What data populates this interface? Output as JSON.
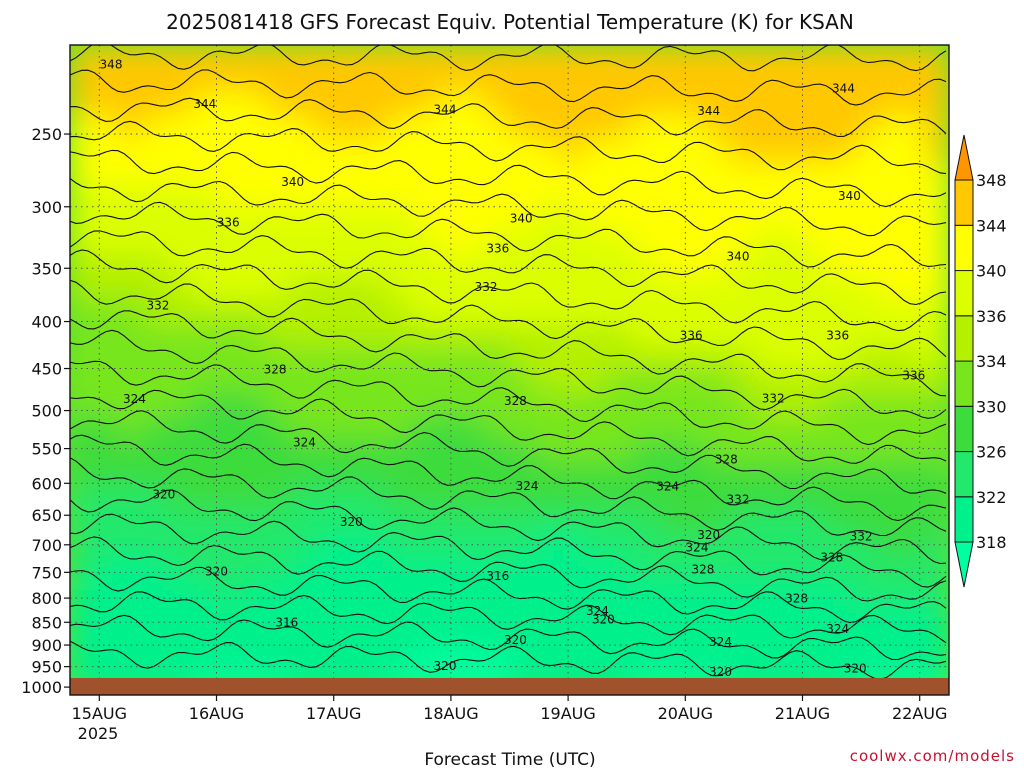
{
  "chart_data": {
    "type": "heatmap",
    "title": "2025081418 GFS Forecast Equiv. Potential Temperature (K) for KSAN",
    "xlabel": "Forecast Time (UTC)",
    "ylabel": "",
    "x_ticks": [
      "15AUG",
      "16AUG",
      "17AUG",
      "18AUG",
      "19AUG",
      "20AUG",
      "21AUG",
      "22AUG"
    ],
    "x_year_label": "2025",
    "x_range_days": [
      14.75,
      22.25
    ],
    "y_ticks": [
      250,
      300,
      350,
      400,
      450,
      500,
      550,
      600,
      650,
      700,
      750,
      800,
      850,
      900,
      950,
      1000
    ],
    "y_range_hpa": [
      200,
      1020
    ],
    "y_scale": "log",
    "grid": true,
    "colorbar": {
      "labels": [
        "318",
        "322",
        "326",
        "330",
        "334",
        "336",
        "340",
        "344",
        "348"
      ],
      "bands": [
        {
          "range": "<318",
          "color": "#00ffa0"
        },
        {
          "range": "318-322",
          "color": "#00f08c"
        },
        {
          "range": "322-326",
          "color": "#22e86c"
        },
        {
          "range": "326-330",
          "color": "#3cdc3c"
        },
        {
          "range": "330-334",
          "color": "#78e61e"
        },
        {
          "range": "334-336",
          "color": "#b4f000"
        },
        {
          "range": "336-340",
          "color": "#dcff00"
        },
        {
          "range": "340-344",
          "color": "#ffff00"
        },
        {
          "range": "344-348",
          "color": "#ffc800"
        },
        {
          "range": ">348",
          "color": "#ff9600"
        }
      ],
      "extend": "both"
    },
    "contour_labels": [
      {
        "text": "348",
        "day": 15.1,
        "p": 210
      },
      {
        "text": "344",
        "day": 15.9,
        "p": 232
      },
      {
        "text": "344",
        "day": 17.95,
        "p": 235
      },
      {
        "text": "344",
        "day": 20.2,
        "p": 236
      },
      {
        "text": "344",
        "day": 21.35,
        "p": 223
      },
      {
        "text": "340",
        "day": 16.65,
        "p": 282
      },
      {
        "text": "340",
        "day": 18.6,
        "p": 309
      },
      {
        "text": "340",
        "day": 20.45,
        "p": 340
      },
      {
        "text": "340",
        "day": 21.4,
        "p": 292
      },
      {
        "text": "336",
        "day": 16.1,
        "p": 312
      },
      {
        "text": "336",
        "day": 18.4,
        "p": 333
      },
      {
        "text": "336",
        "day": 20.05,
        "p": 414
      },
      {
        "text": "336",
        "day": 21.3,
        "p": 414
      },
      {
        "text": "336",
        "day": 21.95,
        "p": 458
      },
      {
        "text": "332",
        "day": 15.5,
        "p": 384
      },
      {
        "text": "332",
        "day": 18.3,
        "p": 367
      },
      {
        "text": "332",
        "day": 20.75,
        "p": 485
      },
      {
        "text": "332",
        "day": 20.45,
        "p": 625
      },
      {
        "text": "332",
        "day": 21.5,
        "p": 686
      },
      {
        "text": "328",
        "day": 16.5,
        "p": 451
      },
      {
        "text": "328",
        "day": 18.55,
        "p": 488
      },
      {
        "text": "328",
        "day": 20.35,
        "p": 565
      },
      {
        "text": "328",
        "day": 20.15,
        "p": 745
      },
      {
        "text": "328",
        "day": 21.25,
        "p": 723
      },
      {
        "text": "328",
        "day": 20.95,
        "p": 801
      },
      {
        "text": "324",
        "day": 15.3,
        "p": 486
      },
      {
        "text": "324",
        "day": 16.75,
        "p": 542
      },
      {
        "text": "324",
        "day": 18.65,
        "p": 604
      },
      {
        "text": "324",
        "day": 19.85,
        "p": 605
      },
      {
        "text": "324",
        "day": 20.1,
        "p": 705
      },
      {
        "text": "324",
        "day": 19.25,
        "p": 826
      },
      {
        "text": "324",
        "day": 20.3,
        "p": 893
      },
      {
        "text": "324",
        "day": 21.3,
        "p": 864
      },
      {
        "text": "320",
        "day": 15.55,
        "p": 617
      },
      {
        "text": "320",
        "day": 17.15,
        "p": 661
      },
      {
        "text": "320",
        "day": 16.0,
        "p": 748
      },
      {
        "text": "320",
        "day": 19.3,
        "p": 844
      },
      {
        "text": "320",
        "day": 18.55,
        "p": 889
      },
      {
        "text": "320",
        "day": 17.95,
        "p": 948
      },
      {
        "text": "320",
        "day": 20.2,
        "p": 683
      },
      {
        "text": "320",
        "day": 20.3,
        "p": 963
      },
      {
        "text": "320",
        "day": 21.45,
        "p": 954
      },
      {
        "text": "316",
        "day": 18.4,
        "p": 757
      },
      {
        "text": "316",
        "day": 16.6,
        "p": 850
      }
    ]
  },
  "watermark": "coolwx.com/models"
}
